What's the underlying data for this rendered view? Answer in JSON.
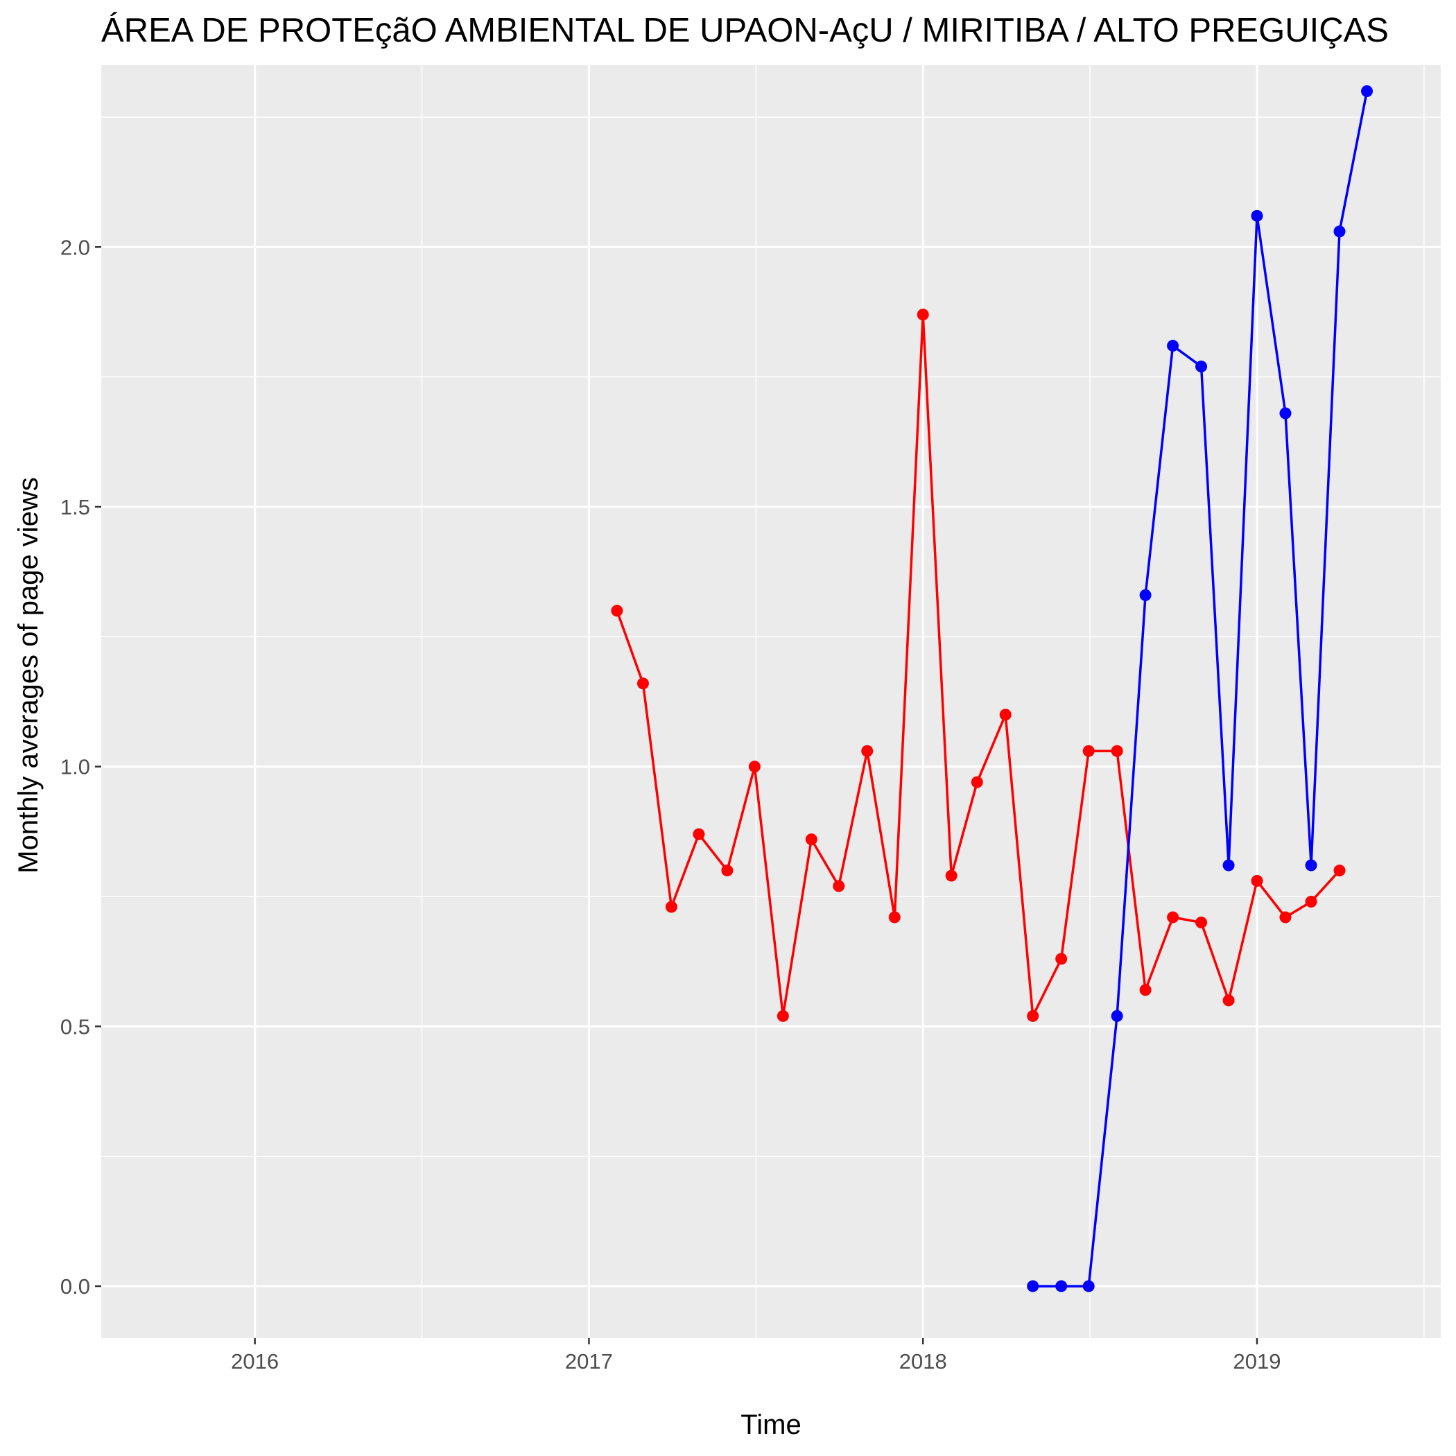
{
  "chart_data": {
    "type": "line",
    "title": "ÁREA DE PROTEçãO AMBIENTAL DE UPAON-AçU / MIRITIBA / ALTO PREGUIÇAS",
    "xlabel": "Time",
    "ylabel": "Monthly averages of page views",
    "xlim": [
      2015.54,
      2019.55
    ],
    "ylim": [
      -0.1,
      2.35
    ],
    "x_ticks": [
      {
        "value": 2016,
        "label": "2016"
      },
      {
        "value": 2017,
        "label": "2017"
      },
      {
        "value": 2018,
        "label": "2018"
      },
      {
        "value": 2019,
        "label": "2019"
      }
    ],
    "y_ticks": [
      {
        "value": 0.0,
        "label": "0.0"
      },
      {
        "value": 0.5,
        "label": "0.5"
      },
      {
        "value": 1.0,
        "label": "1.0"
      },
      {
        "value": 1.5,
        "label": "1.5"
      },
      {
        "value": 2.0,
        "label": "2.0"
      }
    ],
    "grid": true,
    "legend": "none",
    "series": [
      {
        "color": "#ff0000",
        "x": [
          2017.084,
          2017.162,
          2017.247,
          2017.329,
          2017.414,
          2017.496,
          2017.581,
          2017.666,
          2017.748,
          2017.833,
          2017.915,
          2018.0,
          2018.085,
          2018.162,
          2018.247,
          2018.329,
          2018.414,
          2018.496,
          2018.581,
          2018.666,
          2018.748,
          2018.833,
          2018.915,
          2019.0,
          2019.085,
          2019.162,
          2019.247
        ],
        "y": [
          1.3,
          1.16,
          0.73,
          0.87,
          0.8,
          1.0,
          0.52,
          0.86,
          0.77,
          1.03,
          0.71,
          1.87,
          0.79,
          0.97,
          1.1,
          0.52,
          0.63,
          1.03,
          1.03,
          0.57,
          0.71,
          0.7,
          0.55,
          0.78,
          0.71,
          0.74,
          0.8
        ]
      },
      {
        "color": "#0000ff",
        "x": [
          2018.329,
          2018.414,
          2018.496,
          2018.581,
          2018.666,
          2018.748,
          2018.833,
          2018.915,
          2019.0,
          2019.085,
          2019.162,
          2019.247,
          2019.329
        ],
        "y": [
          0.0,
          0.0,
          0.0,
          0.52,
          1.33,
          1.81,
          1.77,
          0.81,
          2.06,
          1.68,
          0.81,
          2.03,
          2.3
        ]
      }
    ]
  }
}
